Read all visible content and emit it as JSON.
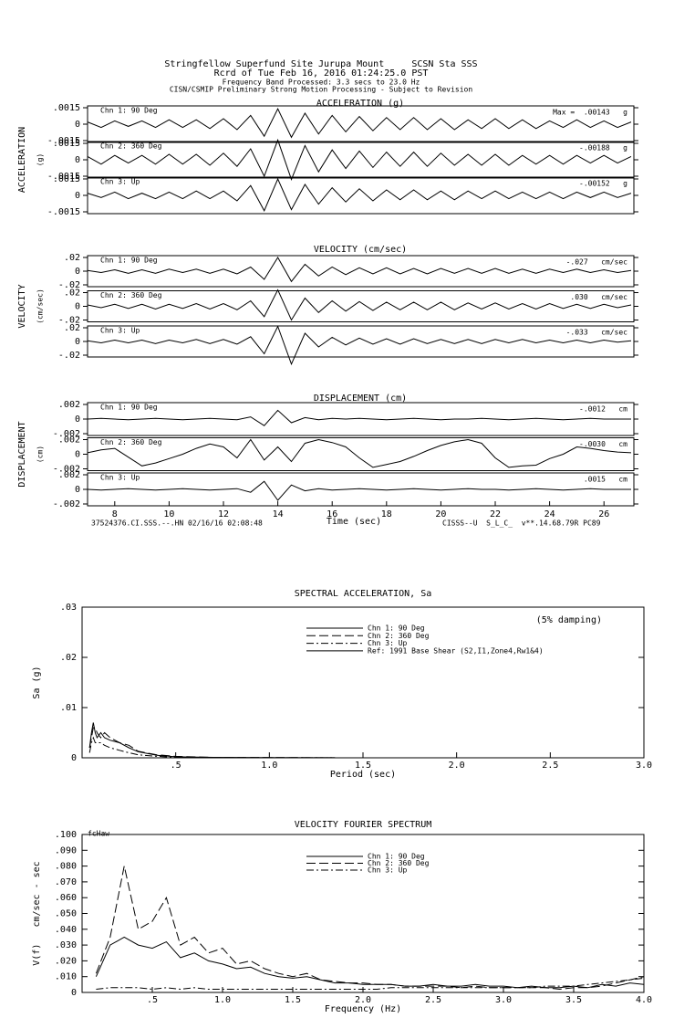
{
  "header": {
    "lines": [
      "Stringfellow Superfund Site Jurupa Mount     SCSN Sta SSS",
      "Rcrd of Tue Feb 16, 2016 01:24:25.0 PST",
      "Frequency Band Processed: 3.3 secs to 23.0 Hz",
      "CISN/CSMIP Preliminary Strong Motion Processing - Subject to Revision"
    ]
  },
  "chart_data": [
    {
      "type": "waveform",
      "title": "ACCELERATION (g)",
      "axis_label": "ACCELERATION",
      "unit_label": "(g)",
      "xlim": [
        7,
        27.1
      ],
      "x": [
        7,
        7.5,
        8,
        8.5,
        9,
        9.5,
        10,
        10.5,
        11,
        11.5,
        12,
        12.5,
        13,
        13.5,
        14,
        14.5,
        15,
        15.5,
        16,
        16.5,
        17,
        17.5,
        18,
        18.5,
        19,
        19.5,
        20,
        20.5,
        21,
        21.5,
        22,
        22.5,
        23,
        23.5,
        24,
        24.5,
        25,
        25.5,
        26,
        26.5,
        27
      ],
      "ylim": [
        -0.0015,
        0.0015
      ],
      "yticks": [
        {
          "value": 0.0015,
          "label": ".0015"
        },
        0,
        {
          "value": -0.0015,
          "label": "-.0015"
        }
      ],
      "color": "#000000",
      "series": [
        {
          "name": "Chn 1: 90 Deg",
          "max_label": "Max =  .00143   g",
          "values": [
            0.0002,
            -0.0003,
            0.0003,
            -0.0002,
            0.0003,
            -0.0003,
            0.0004,
            -0.0003,
            0.0004,
            -0.0004,
            0.0005,
            -0.0005,
            0.0008,
            -0.0011,
            0.0014,
            -0.0012,
            0.001,
            -0.0009,
            0.0008,
            -0.0007,
            0.0007,
            -0.0006,
            0.0006,
            -0.0005,
            0.0006,
            -0.0005,
            0.0005,
            -0.0005,
            0.0004,
            -0.0004,
            0.0005,
            -0.0004,
            0.0004,
            -0.0004,
            0.0003,
            -0.0003,
            0.0004,
            -0.0003,
            0.0003,
            -0.0003,
            0.0002
          ]
        },
        {
          "name": "Chn 2: 360 Deg",
          "max_label": "-.00188   g",
          "values": [
            0.0003,
            -0.0004,
            0.0004,
            -0.0003,
            0.0004,
            -0.0004,
            0.0005,
            -0.0004,
            0.0005,
            -0.0005,
            0.0006,
            -0.0006,
            0.001,
            -0.0015,
            0.0018,
            -0.0018,
            0.0013,
            -0.0011,
            0.0009,
            -0.0008,
            0.0008,
            -0.0007,
            0.0007,
            -0.0006,
            0.0007,
            -0.0006,
            0.0006,
            -0.0005,
            0.0005,
            -0.0005,
            0.0005,
            -0.0005,
            0.0004,
            -0.0004,
            0.0004,
            -0.0004,
            0.0004,
            -0.0003,
            0.0004,
            -0.0003,
            0.0003
          ]
        },
        {
          "name": "Chn 3: Up",
          "max_label": "-.00152   g",
          "values": [
            0.0002,
            -0.0002,
            0.0003,
            -0.0003,
            0.0002,
            -0.0003,
            0.0003,
            -0.0003,
            0.0004,
            -0.0003,
            0.0004,
            -0.0005,
            0.0009,
            -0.0014,
            0.0015,
            -0.0013,
            0.001,
            -0.0008,
            0.0007,
            -0.0006,
            0.0006,
            -0.0005,
            0.0005,
            -0.0004,
            0.0005,
            -0.0004,
            0.0004,
            -0.0004,
            0.0004,
            -0.0003,
            0.0004,
            -0.0003,
            0.0003,
            -0.0003,
            0.0003,
            -0.0003,
            0.0003,
            -0.0002,
            0.0003,
            -0.0002,
            0.0002
          ]
        }
      ]
    },
    {
      "type": "waveform",
      "title": "VELOCITY (cm/sec)",
      "axis_label": "VELOCITY",
      "unit_label": "(cm/sec)",
      "xlim": [
        7,
        27.1
      ],
      "x": [
        7,
        7.5,
        8,
        8.5,
        9,
        9.5,
        10,
        10.5,
        11,
        11.5,
        12,
        12.5,
        13,
        13.5,
        14,
        14.5,
        15,
        15.5,
        16,
        16.5,
        17,
        17.5,
        18,
        18.5,
        19,
        19.5,
        20,
        20.5,
        21,
        21.5,
        22,
        22.5,
        23,
        23.5,
        24,
        24.5,
        25,
        25.5,
        26,
        26.5,
        27
      ],
      "ylim": [
        -0.02,
        0.02
      ],
      "yticks": [
        {
          "value": 0.02,
          "label": ".02"
        },
        0,
        {
          "value": -0.02,
          "label": "-.02"
        }
      ],
      "color": "#000000",
      "series": [
        {
          "name": "Chn 1: 90 Deg",
          "max_label": "-.027   cm/sec",
          "values": [
            0.001,
            -0.002,
            0.002,
            -0.003,
            0.002,
            -0.003,
            0.003,
            -0.002,
            0.003,
            -0.003,
            0.003,
            -0.004,
            0.006,
            -0.012,
            0.02,
            -0.015,
            0.01,
            -0.007,
            0.006,
            -0.005,
            0.005,
            -0.004,
            0.005,
            -0.004,
            0.004,
            -0.004,
            0.004,
            -0.003,
            0.004,
            -0.003,
            0.004,
            -0.003,
            0.003,
            -0.003,
            0.003,
            -0.002,
            0.003,
            -0.002,
            0.002,
            -0.002,
            0.001
          ]
        },
        {
          "name": "Chn 2: 360 Deg",
          "max_label": ".030   cm/sec",
          "values": [
            0.002,
            -0.002,
            0.003,
            -0.003,
            0.003,
            -0.004,
            0.003,
            -0.003,
            0.004,
            -0.004,
            0.004,
            -0.005,
            0.008,
            -0.015,
            0.024,
            -0.02,
            0.012,
            -0.009,
            0.008,
            -0.007,
            0.007,
            -0.006,
            0.006,
            -0.005,
            0.006,
            -0.005,
            0.006,
            -0.005,
            0.005,
            -0.004,
            0.005,
            -0.004,
            0.004,
            -0.004,
            0.004,
            -0.003,
            0.003,
            -0.003,
            0.003,
            -0.002,
            0.002
          ]
        },
        {
          "name": "Chn 3: Up",
          "max_label": "-.033   cm/sec",
          "values": [
            0.001,
            -0.002,
            0.002,
            -0.002,
            0.002,
            -0.003,
            0.002,
            -0.002,
            0.003,
            -0.003,
            0.003,
            -0.004,
            0.007,
            -0.018,
            0.022,
            -0.033,
            0.012,
            -0.008,
            0.006,
            -0.005,
            0.005,
            -0.004,
            0.004,
            -0.004,
            0.004,
            -0.003,
            0.003,
            -0.003,
            0.003,
            -0.003,
            0.003,
            -0.002,
            0.003,
            -0.002,
            0.002,
            -0.002,
            0.002,
            -0.002,
            0.002,
            -0.001,
            0.001
          ]
        }
      ]
    },
    {
      "type": "waveform",
      "title": "DISPLACEMENT (cm)",
      "axis_label": "DISPLACEMENT",
      "unit_label": "(cm)",
      "xlim": [
        7,
        27.1
      ],
      "x": [
        7,
        7.5,
        8,
        8.5,
        9,
        9.5,
        10,
        10.5,
        11,
        11.5,
        12,
        12.5,
        13,
        13.5,
        14,
        14.5,
        15,
        15.5,
        16,
        16.5,
        17,
        17.5,
        18,
        18.5,
        19,
        19.5,
        20,
        20.5,
        21,
        21.5,
        22,
        22.5,
        23,
        23.5,
        24,
        24.5,
        25,
        25.5,
        26,
        26.5,
        27
      ],
      "ylim": [
        -0.002,
        0.002
      ],
      "yticks": [
        {
          "value": 0.002,
          "label": ".002"
        },
        0,
        {
          "value": -0.002,
          "label": "-.002"
        }
      ],
      "color": "#000000",
      "xticks": [
        8,
        10,
        12,
        14,
        16,
        18,
        20,
        22,
        24,
        26
      ],
      "xlabel": "Time (sec)",
      "footer_left": "37524376.CI.SSS.--.HN 02/16/16 02:08:48",
      "footer_right": "CISSS--U  S_L_C_  v**.14.68.79R PC89",
      "series": [
        {
          "name": "Chn 1: 90 Deg",
          "max_label": "-.0012   cm",
          "values": [
            0,
            0.0001,
            0,
            -0.0001,
            0,
            0.0001,
            0,
            -0.0001,
            0,
            0.0001,
            0,
            -0.0001,
            0.0003,
            -0.0009,
            0.0012,
            -0.0005,
            0.0002,
            -0.0001,
            0.0001,
            0,
            0.0001,
            0,
            -0.0001,
            0,
            0.0001,
            0,
            -0.0001,
            0,
            0,
            0.0001,
            0,
            -0.0001,
            0,
            0.0001,
            0,
            -0.0001,
            0,
            0.0001,
            0,
            0,
            0
          ]
        },
        {
          "name": "Chn 2: 360 Deg",
          "max_label": "-.0030   cm",
          "values": [
            0.0002,
            0.0006,
            0.0008,
            -0.0004,
            -0.0016,
            -0.0012,
            -0.0006,
            0,
            0.0008,
            0.0014,
            0.001,
            -0.0005,
            0.002,
            -0.0008,
            0.001,
            -0.001,
            0.0015,
            0.002,
            0.0016,
            0.001,
            -0.0005,
            -0.0018,
            -0.0014,
            -0.001,
            -0.0003,
            0.0005,
            0.0012,
            0.0017,
            0.002,
            0.0015,
            -0.0005,
            -0.0018,
            -0.0016,
            -0.0015,
            -0.0006,
            0,
            0.001,
            0.0008,
            0.0005,
            0.0003,
            0.0002
          ]
        },
        {
          "name": "Chn 3: Up",
          "max_label": ".0015   cm",
          "values": [
            0,
            -0.0001,
            0,
            0.0001,
            0,
            -0.0001,
            0,
            0.0001,
            0,
            -0.0001,
            0,
            0.0001,
            -0.0004,
            0.0011,
            -0.0015,
            0.0006,
            -0.0002,
            0.0001,
            -0.0001,
            0,
            0.0001,
            0,
            -0.0001,
            0,
            0.0001,
            0,
            -0.0001,
            0,
            0.0001,
            0,
            0,
            -0.0001,
            0,
            0.0001,
            0,
            -0.0001,
            0,
            0.0001,
            0,
            0,
            0
          ]
        }
      ]
    },
    {
      "type": "line",
      "title": "SPECTRAL ACCELERATION, Sa",
      "xlabel": "Period (sec)",
      "ylabel": "Sa (g)",
      "annotation": "(5% damping)",
      "xlim": [
        0,
        3
      ],
      "ylim": [
        0,
        0.03
      ],
      "xticks": [
        {
          "value": 0.5,
          "label": ".5"
        },
        {
          "value": 1,
          "label": "1.0"
        },
        {
          "value": 1.5,
          "label": "1.5"
        },
        {
          "value": 2,
          "label": "2.0"
        },
        {
          "value": 2.5,
          "label": "2.5"
        },
        {
          "value": 3,
          "label": "3.0"
        }
      ],
      "yticks": [
        0,
        {
          "value": 0.01,
          "label": ".01"
        },
        {
          "value": 0.02,
          "label": ".02"
        },
        {
          "value": 0.03,
          "label": ".03"
        }
      ],
      "x": [
        0.04,
        0.05,
        0.06,
        0.07,
        0.08,
        0.1,
        0.12,
        0.15,
        0.2,
        0.25,
        0.3,
        0.4,
        0.5,
        0.7,
        1.0,
        1.35
      ],
      "series": [
        {
          "name": "Chn 1: 90 Deg",
          "color": "#000000",
          "dash": "solid",
          "values": [
            0.002,
            0.005,
            0.007,
            0.005,
            0.004,
            0.005,
            0.004,
            0.0035,
            0.003,
            0.002,
            0.0012,
            0.0005,
            0.0002,
            0.0001,
            5e-05,
            2e-05
          ]
        },
        {
          "name": "Chn 2: 360 Deg",
          "color": "#000000",
          "dash": "long-dash",
          "values": [
            0.002,
            0.004,
            0.006,
            0.006,
            0.005,
            0.004,
            0.005,
            0.004,
            0.003,
            0.0025,
            0.0013,
            0.0006,
            0.0003,
            0.0001,
            5e-05,
            2e-05
          ]
        },
        {
          "name": "Chn 3: Up",
          "color": "#000000",
          "dash": "dash-dot",
          "values": [
            0.001,
            0.003,
            0.004,
            0.003,
            0.003,
            0.003,
            0.0025,
            0.002,
            0.0015,
            0.001,
            0.0006,
            0.0003,
            0.0001,
            5e-05,
            2e-05,
            1e-05
          ]
        },
        {
          "name": "Ref: 1991 Base Shear (S2,I1,Zone4,Rw1&4)",
          "color": "#000000",
          "dash": "solid",
          "values": [
            0,
            0,
            0,
            0,
            0,
            0,
            0,
            0,
            0,
            0,
            0,
            0,
            0,
            0,
            0,
            0
          ]
        }
      ]
    },
    {
      "type": "line",
      "title": "VELOCITY FOURIER SPECTRUM",
      "xlabel": "Frequency (Hz)",
      "ylabel": "V(f)   cm/sec - sec",
      "annotation": "fcHaw",
      "xlim": [
        0,
        4
      ],
      "ylim": [
        0,
        0.1
      ],
      "xticks": [
        {
          "value": 0.5,
          "label": ".5"
        },
        {
          "value": 1,
          "label": "1.0"
        },
        {
          "value": 1.5,
          "label": "1.5"
        },
        {
          "value": 2,
          "label": "2.0"
        },
        {
          "value": 2.5,
          "label": "2.5"
        },
        {
          "value": 3,
          "label": "3.0"
        },
        {
          "value": 3.5,
          "label": "3.5"
        },
        {
          "value": 4,
          "label": "4.0"
        }
      ],
      "yticks": [
        0,
        {
          "value": 0.01,
          "label": ".010"
        },
        {
          "value": 0.02,
          "label": ".020"
        },
        {
          "value": 0.03,
          "label": ".030"
        },
        {
          "value": 0.04,
          "label": ".040"
        },
        {
          "value": 0.05,
          "label": ".050"
        },
        {
          "value": 0.06,
          "label": ".060"
        },
        {
          "value": 0.07,
          "label": ".070"
        },
        {
          "value": 0.08,
          "label": ".080"
        },
        {
          "value": 0.09,
          "label": ".090"
        },
        {
          "value": 0.1,
          "label": ".100"
        }
      ],
      "x": [
        0.1,
        0.2,
        0.3,
        0.4,
        0.5,
        0.6,
        0.7,
        0.8,
        0.9,
        1.0,
        1.1,
        1.2,
        1.3,
        1.4,
        1.5,
        1.6,
        1.7,
        1.8,
        1.9,
        2.0,
        2.1,
        2.2,
        2.3,
        2.4,
        2.5,
        2.6,
        2.7,
        2.8,
        2.9,
        3.0,
        3.1,
        3.2,
        3.3,
        3.4,
        3.5,
        3.6,
        3.7,
        3.8,
        3.9,
        4.0
      ],
      "series": [
        {
          "name": "Chn 1: 90 Deg",
          "color": "#000000",
          "dash": "solid",
          "values": [
            0.01,
            0.03,
            0.035,
            0.03,
            0.028,
            0.032,
            0.022,
            0.025,
            0.02,
            0.018,
            0.015,
            0.016,
            0.012,
            0.01,
            0.009,
            0.01,
            0.008,
            0.006,
            0.006,
            0.005,
            0.005,
            0.005,
            0.004,
            0.004,
            0.005,
            0.004,
            0.004,
            0.005,
            0.004,
            0.004,
            0.003,
            0.004,
            0.003,
            0.003,
            0.004,
            0.003,
            0.005,
            0.004,
            0.006,
            0.005
          ]
        },
        {
          "name": "Chn 2: 360 Deg",
          "color": "#000000",
          "dash": "long-dash",
          "values": [
            0.012,
            0.035,
            0.08,
            0.04,
            0.045,
            0.06,
            0.03,
            0.035,
            0.025,
            0.028,
            0.018,
            0.02,
            0.015,
            0.012,
            0.01,
            0.012,
            0.008,
            0.007,
            0.006,
            0.006,
            0.005,
            0.005,
            0.004,
            0.004,
            0.004,
            0.004,
            0.003,
            0.004,
            0.003,
            0.003,
            0.003,
            0.003,
            0.003,
            0.002,
            0.003,
            0.003,
            0.004,
            0.006,
            0.008,
            0.01
          ]
        },
        {
          "name": "Chn 3: Up",
          "color": "#000000",
          "dash": "dash-dot",
          "values": [
            0.002,
            0.003,
            0.003,
            0.003,
            0.002,
            0.003,
            0.002,
            0.003,
            0.002,
            0.002,
            0.002,
            0.002,
            0.002,
            0.002,
            0.002,
            0.002,
            0.002,
            0.002,
            0.002,
            0.002,
            0.002,
            0.003,
            0.003,
            0.003,
            0.003,
            0.003,
            0.003,
            0.003,
            0.003,
            0.003,
            0.003,
            0.003,
            0.004,
            0.004,
            0.004,
            0.005,
            0.006,
            0.007,
            0.008,
            0.009
          ]
        }
      ]
    }
  ]
}
